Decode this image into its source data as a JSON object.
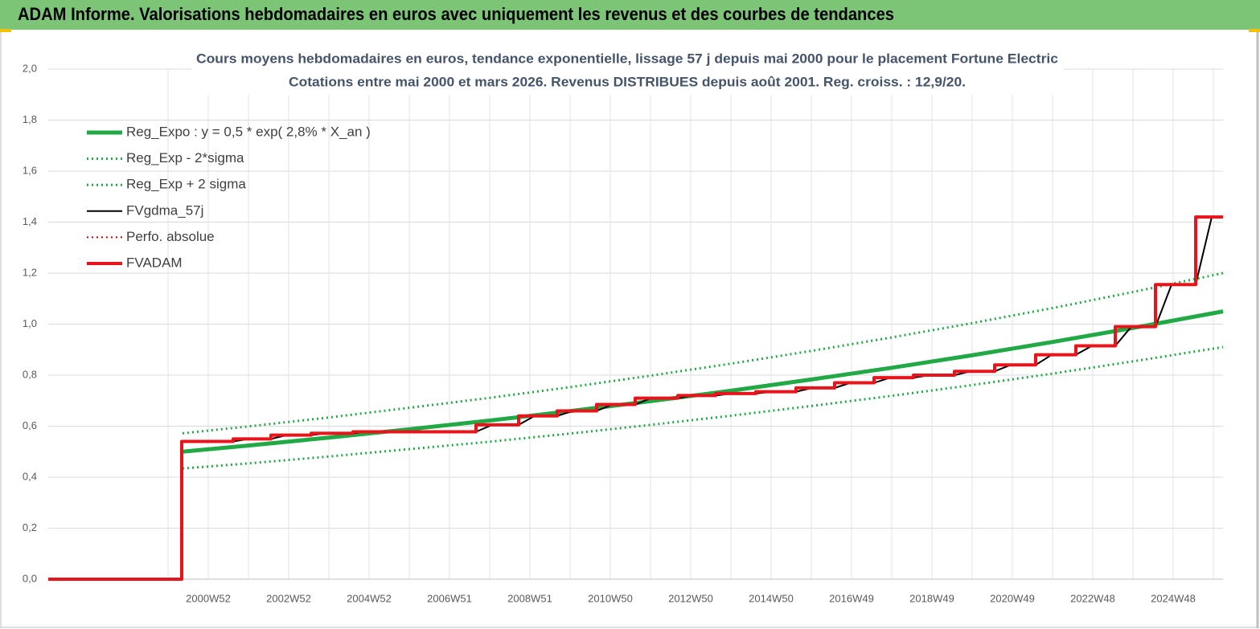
{
  "header": {
    "title": "ADAM Informe. Valorisations hebdomadaires en euros avec uniquement les revenus et des courbes de tendances"
  },
  "chart_data": {
    "type": "line",
    "title": [
      "Cours moyens hebdomadaires en euros, tendance exponentielle, lissage 57 j depuis mai 2000 pour le placement Fortune Electric",
      "Cotations entre mai 2000 et mars 2026. Revenus DISTRIBUES depuis août 2001. Reg. croiss. : 12,9/20."
    ],
    "xlim": [
      1997.02,
      2026.24
    ],
    "xticks": [
      {
        "value": 2001,
        "label": "2000W52"
      },
      {
        "value": 2003,
        "label": "2002W52"
      },
      {
        "value": 2005,
        "label": "2004W52"
      },
      {
        "value": 2007,
        "label": "2006W51"
      },
      {
        "value": 2009,
        "label": "2008W51"
      },
      {
        "value": 2011,
        "label": "2010W50"
      },
      {
        "value": 2013,
        "label": "2012W50"
      },
      {
        "value": 2015,
        "label": "2014W50"
      },
      {
        "value": 2017,
        "label": "2016W49"
      },
      {
        "value": 2019,
        "label": "2018W49"
      },
      {
        "value": 2021,
        "label": "2020W49"
      },
      {
        "value": 2023,
        "label": "2022W48"
      },
      {
        "value": 2025,
        "label": "2024W48"
      }
    ],
    "ylim": [
      0,
      2
    ],
    "yticks": [
      {
        "value": 0,
        "label": "0,0"
      },
      {
        "value": 0.2,
        "label": "0,2"
      },
      {
        "value": 0.4,
        "label": "0,4"
      },
      {
        "value": 0.6,
        "label": "0,6"
      },
      {
        "value": 0.8,
        "label": "0,8"
      },
      {
        "value": 1,
        "label": "1,0"
      },
      {
        "value": 1.2,
        "label": "1,2"
      },
      {
        "value": 1.4,
        "label": "1,4"
      },
      {
        "value": 1.6,
        "label": "1,6"
      },
      {
        "value": 1.8,
        "label": "1,8"
      },
      {
        "value": 2,
        "label": "2,0"
      }
    ],
    "grid": true,
    "legend": "upper left",
    "series": [
      {
        "name": "Reg_Expo : y = 0,5 * exp( 2,8% *  X_an )",
        "color": "#21a946",
        "line_style": "solid",
        "line_width": 5,
        "x": [
          2000.36,
          2002,
          2004,
          2006,
          2008,
          2010,
          2012,
          2014,
          2016,
          2018,
          2020,
          2022,
          2024,
          2026.24
        ],
        "values": [
          0.5,
          0.524,
          0.555,
          0.588,
          0.622,
          0.659,
          0.698,
          0.739,
          0.783,
          0.829,
          0.878,
          0.93,
          0.985,
          1.05
        ]
      },
      {
        "name": "Reg_Exp - 2*sigma",
        "color": "#21a946",
        "line_style": "dotted",
        "line_width": 3,
        "x": [
          2000.36,
          2002,
          2004,
          2006,
          2008,
          2010,
          2012,
          2014,
          2016,
          2018,
          2020,
          2022,
          2024,
          2026.24
        ],
        "values": [
          0.434,
          0.454,
          0.481,
          0.51,
          0.539,
          0.571,
          0.605,
          0.641,
          0.679,
          0.719,
          0.761,
          0.806,
          0.854,
          0.91
        ]
      },
      {
        "name": "Reg_Exp + 2 sigma",
        "color": "#21a946",
        "line_style": "dotted",
        "line_width": 3,
        "x": [
          2000.36,
          2002,
          2004,
          2006,
          2008,
          2010,
          2012,
          2014,
          2016,
          2018,
          2020,
          2022,
          2024,
          2026.24
        ],
        "values": [
          0.572,
          0.599,
          0.634,
          0.672,
          0.711,
          0.753,
          0.798,
          0.845,
          0.895,
          0.948,
          1.004,
          1.063,
          1.126,
          1.2
        ]
      },
      {
        "name": "FVgdma_57j",
        "color": "#000000",
        "line_style": "solid",
        "line_width": 2,
        "x": [
          1997.02,
          2000.34,
          2000.34,
          2001.62,
          2002.02,
          2002.56,
          2002.96,
          2003.56,
          2003.96,
          2004.6,
          2005.0,
          2007.66,
          2008.06,
          2008.72,
          2009.12,
          2009.68,
          2010.08,
          2010.66,
          2011.06,
          2011.62,
          2012.02,
          2012.68,
          2013.08,
          2013.62,
          2014.02,
          2014.62,
          2015.02,
          2015.62,
          2016.02,
          2016.58,
          2016.98,
          2017.56,
          2017.96,
          2018.54,
          2018.94,
          2019.56,
          2019.96,
          2020.56,
          2020.96,
          2021.58,
          2021.98,
          2022.58,
          2022.98,
          2023.56,
          2023.96,
          2024.56,
          2024.96,
          2025.56,
          2025.96,
          2026.24
        ],
        "values": [
          0,
          0,
          0.54,
          0.54,
          0.55,
          0.55,
          0.565,
          0.565,
          0.572,
          0.572,
          0.578,
          0.578,
          0.605,
          0.605,
          0.64,
          0.64,
          0.66,
          0.66,
          0.685,
          0.685,
          0.71,
          0.71,
          0.72,
          0.72,
          0.728,
          0.728,
          0.735,
          0.735,
          0.75,
          0.75,
          0.77,
          0.77,
          0.79,
          0.79,
          0.8,
          0.8,
          0.815,
          0.815,
          0.84,
          0.84,
          0.88,
          0.88,
          0.915,
          0.915,
          0.99,
          0.99,
          1.155,
          1.155,
          1.42,
          1.42
        ]
      },
      {
        "name": "Perfo. absolue",
        "color": "#c00000",
        "line_style": "dotted",
        "line_width": 2,
        "x": [
          1997.02,
          2000.34,
          2000.34,
          2001.62,
          2001.62,
          2002.56,
          2002.56,
          2003.56,
          2003.56,
          2004.6,
          2004.6,
          2007.66,
          2007.66,
          2008.72,
          2008.72,
          2009.68,
          2009.68,
          2010.66,
          2010.66,
          2011.62,
          2011.62,
          2012.68,
          2012.68,
          2013.62,
          2013.62,
          2014.62,
          2014.62,
          2015.62,
          2015.62,
          2016.58,
          2016.58,
          2017.56,
          2017.56,
          2018.54,
          2018.54,
          2019.56,
          2019.56,
          2020.56,
          2020.56,
          2021.58,
          2021.58,
          2022.58,
          2022.58,
          2023.56,
          2023.56,
          2024.56,
          2024.56,
          2025.56,
          2025.56,
          2026.24
        ],
        "values": [
          0,
          0,
          0.54,
          0.54,
          0.55,
          0.55,
          0.565,
          0.565,
          0.572,
          0.572,
          0.578,
          0.578,
          0.605,
          0.605,
          0.64,
          0.64,
          0.66,
          0.66,
          0.685,
          0.685,
          0.71,
          0.71,
          0.72,
          0.72,
          0.728,
          0.728,
          0.735,
          0.735,
          0.75,
          0.75,
          0.77,
          0.77,
          0.79,
          0.79,
          0.8,
          0.8,
          0.815,
          0.815,
          0.84,
          0.84,
          0.88,
          0.88,
          0.915,
          0.915,
          0.99,
          0.99,
          1.155,
          1.155,
          1.42,
          1.42
        ]
      },
      {
        "name": "FVADAM",
        "color": "#e8141b",
        "line_style": "solid",
        "line_width": 4,
        "x": [
          1997.02,
          2000.34,
          2000.34,
          2001.62,
          2001.62,
          2002.56,
          2002.56,
          2003.56,
          2003.56,
          2004.6,
          2004.6,
          2007.66,
          2007.66,
          2008.72,
          2008.72,
          2009.68,
          2009.68,
          2010.66,
          2010.66,
          2011.62,
          2011.62,
          2012.68,
          2012.68,
          2013.62,
          2013.62,
          2014.62,
          2014.62,
          2015.62,
          2015.62,
          2016.58,
          2016.58,
          2017.56,
          2017.56,
          2018.54,
          2018.54,
          2019.56,
          2019.56,
          2020.56,
          2020.56,
          2021.58,
          2021.58,
          2022.58,
          2022.58,
          2023.56,
          2023.56,
          2024.56,
          2024.56,
          2025.56,
          2025.56,
          2026.24
        ],
        "values": [
          0,
          0,
          0.54,
          0.54,
          0.55,
          0.55,
          0.565,
          0.565,
          0.572,
          0.572,
          0.578,
          0.578,
          0.605,
          0.605,
          0.64,
          0.64,
          0.66,
          0.66,
          0.685,
          0.685,
          0.71,
          0.71,
          0.72,
          0.72,
          0.728,
          0.728,
          0.735,
          0.735,
          0.75,
          0.75,
          0.77,
          0.77,
          0.79,
          0.79,
          0.8,
          0.8,
          0.815,
          0.815,
          0.84,
          0.84,
          0.88,
          0.88,
          0.915,
          0.915,
          0.99,
          0.99,
          1.155,
          1.155,
          1.42,
          1.42
        ]
      }
    ]
  }
}
